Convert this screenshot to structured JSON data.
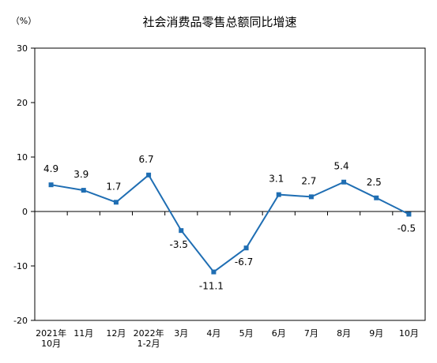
{
  "chart_data": {
    "type": "line",
    "title": "社会消费品零售总额同比增速",
    "ylabel": "（%）",
    "xlabel": "",
    "ylim": [
      -20,
      30
    ],
    "yticks": [
      -20,
      -10,
      0,
      10,
      20,
      30
    ],
    "grid": false,
    "categories": [
      [
        "2021年",
        "10月"
      ],
      [
        "11月"
      ],
      [
        "12月"
      ],
      [
        "2022年",
        "1-2月"
      ],
      [
        "3月"
      ],
      [
        "4月"
      ],
      [
        "5月"
      ],
      [
        "6月"
      ],
      [
        "7月"
      ],
      [
        "8月"
      ],
      [
        "9月"
      ],
      [
        "10月"
      ]
    ],
    "series": [
      {
        "values": [
          4.9,
          3.9,
          1.7,
          6.7,
          -3.5,
          -11.1,
          -6.7,
          3.1,
          2.7,
          5.4,
          2.5,
          -0.5
        ],
        "labels": [
          "4.9",
          "3.9",
          "1.7",
          "6.7",
          "-3.5",
          "-11.1",
          "-6.7",
          "3.1",
          "2.7",
          "5.4",
          "2.5",
          "-0.5"
        ],
        "color": "#1f6eb3"
      }
    ]
  }
}
